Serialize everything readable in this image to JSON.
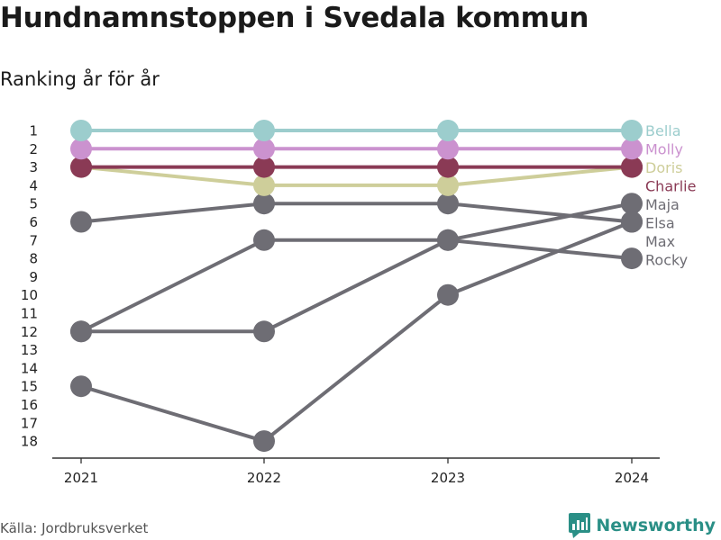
{
  "chart_data": {
    "type": "line",
    "title": "Hundnamnstoppen i Svedala kommun",
    "subtitle": "Ranking år för år",
    "xlabel": "",
    "ylabel": "",
    "x": [
      "2021",
      "2022",
      "2023",
      "2024"
    ],
    "y_ticks": [
      "1",
      "2",
      "3",
      "4",
      "5",
      "6",
      "7",
      "8",
      "9",
      "10",
      "11",
      "12",
      "13",
      "14",
      "15",
      "16",
      "17",
      "18"
    ],
    "ylim": [
      1,
      18
    ],
    "y_reversed": true,
    "grid": false,
    "series": [
      {
        "name": "Elsa",
        "values": [
          15,
          18,
          10,
          6
        ],
        "color": "#6e6d74"
      },
      {
        "name": "Maja",
        "values": [
          12,
          12,
          7,
          5
        ],
        "color": "#6e6d74"
      },
      {
        "name": "Max",
        "values": [
          6,
          5,
          5,
          6
        ],
        "color": "#6e6d74"
      },
      {
        "name": "Rocky",
        "values": [
          12,
          7,
          7,
          8
        ],
        "color": "#6e6d74"
      },
      {
        "name": "Doris",
        "values": [
          3,
          4,
          4,
          3
        ],
        "color": "#cece9a"
      },
      {
        "name": "Charlie",
        "values": [
          3,
          3,
          3,
          3
        ],
        "color": "#8a3a55"
      },
      {
        "name": "Molly",
        "values": [
          2,
          2,
          2,
          2
        ],
        "color": "#cb92cf"
      },
      {
        "name": "Bella",
        "values": [
          1,
          1,
          1,
          1
        ],
        "color": "#9ccdcd"
      }
    ]
  },
  "source_text": "Källa: Jordbruksverket",
  "brand": {
    "name": "Newsworthy",
    "icon": "newsworthy-logo-icon",
    "color": "#2a8f86"
  }
}
